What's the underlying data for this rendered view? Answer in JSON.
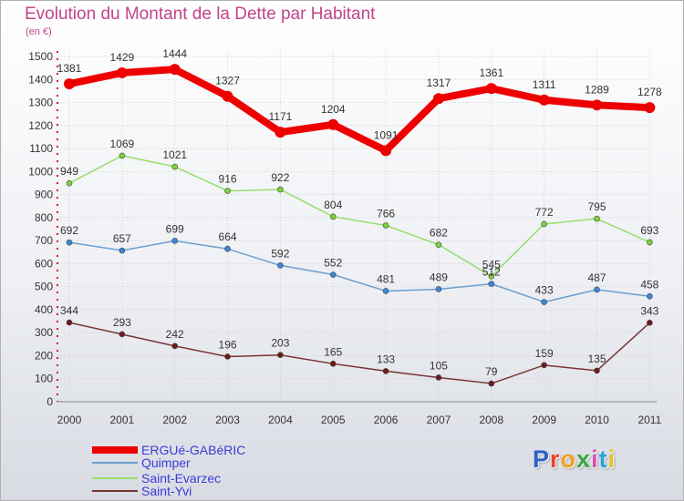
{
  "title": "Evolution du Montant de la Dette par Habitant",
  "subtitle": "(en €)",
  "chart_data": {
    "type": "line",
    "x": [
      "2000",
      "2001",
      "2002",
      "2003",
      "2004",
      "2005",
      "2006",
      "2007",
      "2008",
      "2009",
      "2010",
      "2011"
    ],
    "ylim": [
      0,
      1500
    ],
    "yticks": [
      0,
      100,
      200,
      300,
      400,
      500,
      600,
      700,
      800,
      900,
      1000,
      1100,
      1200,
      1300,
      1400,
      1500
    ],
    "grid": true,
    "legend_placement": "bottom-left",
    "series": [
      {
        "name": "ERGUé-GABéRIC",
        "color": "#ee0000",
        "marker": "#ee0000",
        "width": 8,
        "radius": 6,
        "values": [
          1381,
          1429,
          1444,
          1327,
          1171,
          1204,
          1091,
          1317,
          1361,
          1311,
          1289,
          1278
        ]
      },
      {
        "name": "Quimper",
        "color": "#6a9fd0",
        "marker": "#3d86d8",
        "width": 1.5,
        "radius": 3,
        "values": [
          692,
          657,
          699,
          664,
          592,
          552,
          481,
          489,
          512,
          433,
          487,
          458
        ]
      },
      {
        "name": "Saint-Evarzec",
        "color": "#98dd6a",
        "marker": "#78d43c",
        "width": 1.5,
        "radius": 3,
        "values": [
          949,
          1069,
          1021,
          916,
          922,
          804,
          766,
          682,
          545,
          772,
          795,
          693
        ]
      },
      {
        "name": "Saint-Yvi",
        "color": "#7a3535",
        "marker": "#6e1a1a",
        "width": 1.5,
        "radius": 3,
        "values": [
          344,
          293,
          242,
          196,
          203,
          165,
          133,
          105,
          79,
          159,
          135,
          343
        ]
      }
    ],
    "data_labels": [
      [
        "1381",
        "1429",
        "1444",
        "1327",
        "1171",
        "1204",
        "1091",
        "1317",
        "1361",
        "1311",
        "1289",
        "1278"
      ],
      [
        "692",
        "657",
        "699",
        "664",
        "592",
        "552",
        "481",
        "489",
        "512",
        "433",
        "487",
        "458"
      ],
      [
        "949",
        "1069",
        "1021",
        "916",
        "922",
        "804",
        "766",
        "682",
        "545",
        "772",
        "795",
        "693"
      ],
      [
        "344",
        "293",
        "242",
        "196",
        "203",
        "165",
        "133",
        "105",
        "79",
        "159",
        "135",
        "343"
      ]
    ]
  },
  "logo": {
    "letters": [
      {
        "ch": "P",
        "color": "#2a5fc4"
      },
      {
        "ch": "r",
        "color": "#e8432a"
      },
      {
        "ch": "o",
        "color": "#f0a020"
      },
      {
        "ch": "x",
        "color": "#3ba83b"
      },
      {
        "ch": "i",
        "color": "#d84fb0"
      },
      {
        "ch": "t",
        "color": "#2aa0d8"
      },
      {
        "ch": "i",
        "color": "#e8c020"
      }
    ]
  }
}
